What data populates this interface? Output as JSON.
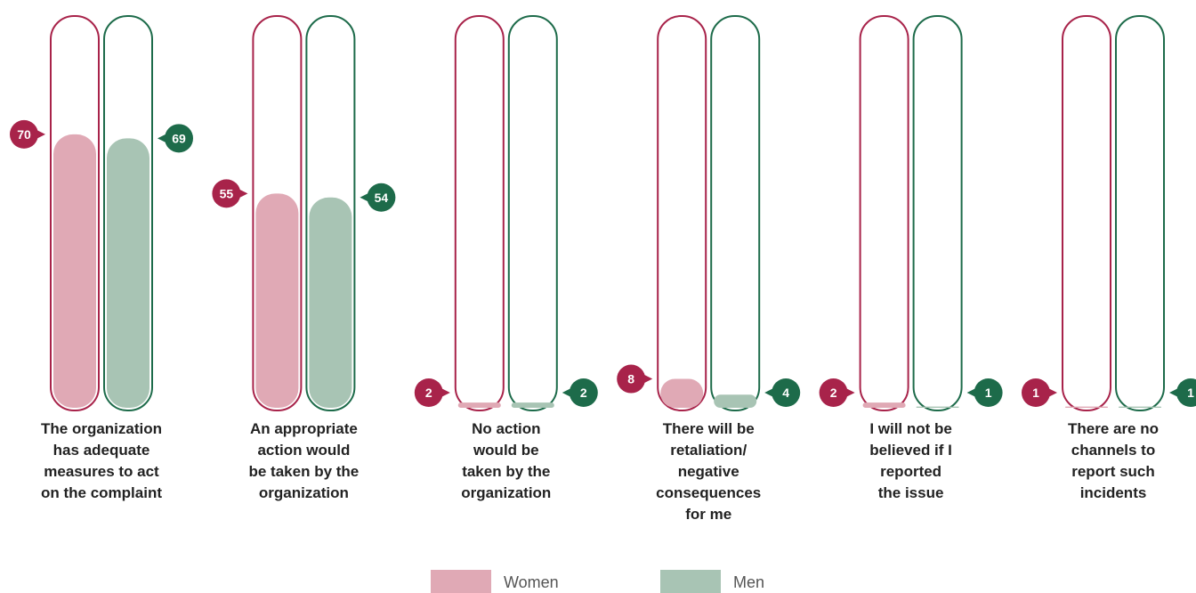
{
  "chart_data": {
    "type": "bar",
    "categories": [
      "The organization\nhas adequate\nmeasures to act\non the complaint",
      "An appropriate\naction would\nbe taken by the\norganization",
      "No action\nwould be\ntaken by the\norganization",
      "There will be\nretaliation/\nnegative\nconsequences\nfor me",
      "I will not be\nbelieved if I\nreported\nthe issue",
      "There are no\nchannels to\nreport such\nincidents"
    ],
    "series": [
      {
        "name": "Women",
        "color": "#e0a9b5",
        "outline": "#a8234a",
        "values": [
          70,
          55,
          2,
          8,
          2,
          1
        ]
      },
      {
        "name": "Men",
        "color": "#a8c4b4",
        "outline": "#1d6b4a",
        "values": [
          69,
          54,
          2,
          4,
          1,
          1
        ]
      }
    ],
    "ylim": [
      0,
      100
    ],
    "legend": "bottom"
  }
}
